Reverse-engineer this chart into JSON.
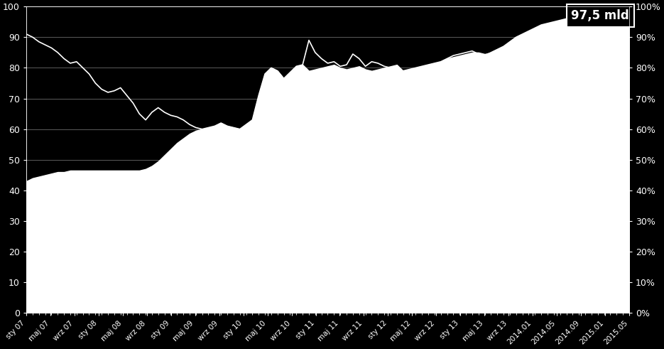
{
  "background_color": "#000000",
  "plot_bg_color": "#000000",
  "text_color": "#ffffff",
  "line_color": "#ffffff",
  "fill_color": "#ffffff",
  "annotation_text": "97,5 mld",
  "ylim": [
    0,
    100
  ],
  "yticks_left": [
    0,
    10,
    20,
    30,
    40,
    50,
    60,
    70,
    80,
    90,
    100
  ],
  "yticks_right_labels": [
    "0%",
    "10%",
    "20%",
    "30%",
    "40%",
    "50%",
    "60%",
    "70%",
    "80%",
    "90%",
    "100%"
  ],
  "xtick_labels": [
    "sty 07",
    "maj 07",
    "wrz 07",
    "sty 08",
    "maj 08",
    "wrz 08",
    "sty 09",
    "maj 09",
    "wrz 09",
    "sty 10",
    "maj 10",
    "wrz 10",
    "sty 11",
    "maj 11",
    "wrz 11",
    "sty 12",
    "maj 12",
    "wrz 12",
    "sty 13",
    "maj 13",
    "wrz 13",
    "2014.01",
    "2014.05",
    "2014.09",
    "2015.01",
    "2015.05"
  ],
  "line_data": [
    91.0,
    90.0,
    88.5,
    87.5,
    86.5,
    85.0,
    83.0,
    81.5,
    82.0,
    80.0,
    78.0,
    75.0,
    73.0,
    72.0,
    72.5,
    73.5,
    71.0,
    68.5,
    65.0,
    63.0,
    65.5,
    67.0,
    65.5,
    64.5,
    64.0,
    63.0,
    61.5,
    60.5,
    60.0,
    60.5,
    61.0,
    62.0,
    61.0,
    60.5,
    60.0,
    61.5,
    63.0,
    71.0,
    78.0,
    80.0,
    79.0,
    76.5,
    78.5,
    80.5,
    81.0,
    89.0,
    85.0,
    83.0,
    81.5,
    82.0,
    80.5,
    81.0,
    84.5,
    83.0,
    80.5,
    82.0,
    81.5,
    80.5,
    80.0,
    79.5,
    79.0,
    79.5,
    80.0,
    80.5,
    81.0,
    81.5,
    82.0,
    83.0,
    84.0,
    84.5,
    85.0,
    85.5,
    84.5,
    84.0,
    85.0,
    86.0,
    87.0,
    88.5,
    90.0,
    91.0,
    92.0,
    93.0,
    94.0,
    94.5,
    95.0,
    95.5,
    96.0,
    96.5,
    97.0,
    97.5,
    97.5,
    97.5,
    97.5,
    97.5,
    97.5,
    97.5,
    97.5
  ],
  "area_data": [
    43.0,
    44.0,
    44.5,
    45.0,
    45.5,
    46.0,
    46.0,
    46.5,
    46.5,
    46.5,
    46.5,
    46.5,
    46.5,
    46.5,
    46.5,
    46.5,
    46.5,
    46.5,
    46.5,
    47.0,
    48.0,
    49.5,
    51.5,
    53.5,
    55.5,
    57.0,
    58.5,
    59.5,
    60.0,
    60.5,
    61.0,
    62.0,
    61.0,
    60.5,
    60.0,
    61.5,
    63.0,
    71.0,
    78.0,
    80.0,
    79.0,
    76.5,
    78.5,
    80.5,
    81.0,
    79.0,
    79.5,
    80.0,
    80.5,
    81.0,
    80.0,
    79.5,
    80.0,
    80.5,
    79.5,
    79.0,
    79.5,
    80.0,
    80.5,
    81.0,
    79.0,
    79.5,
    80.0,
    80.5,
    81.0,
    81.5,
    82.0,
    83.0,
    83.5,
    84.0,
    84.5,
    85.0,
    85.0,
    84.5,
    85.0,
    86.0,
    87.0,
    88.5,
    90.0,
    91.0,
    92.0,
    93.0,
    94.0,
    94.5,
    95.0,
    95.5,
    96.0,
    96.5,
    97.0,
    97.5,
    97.5,
    97.5,
    97.5,
    97.5,
    97.5,
    97.5,
    97.5
  ],
  "n_points": 97
}
